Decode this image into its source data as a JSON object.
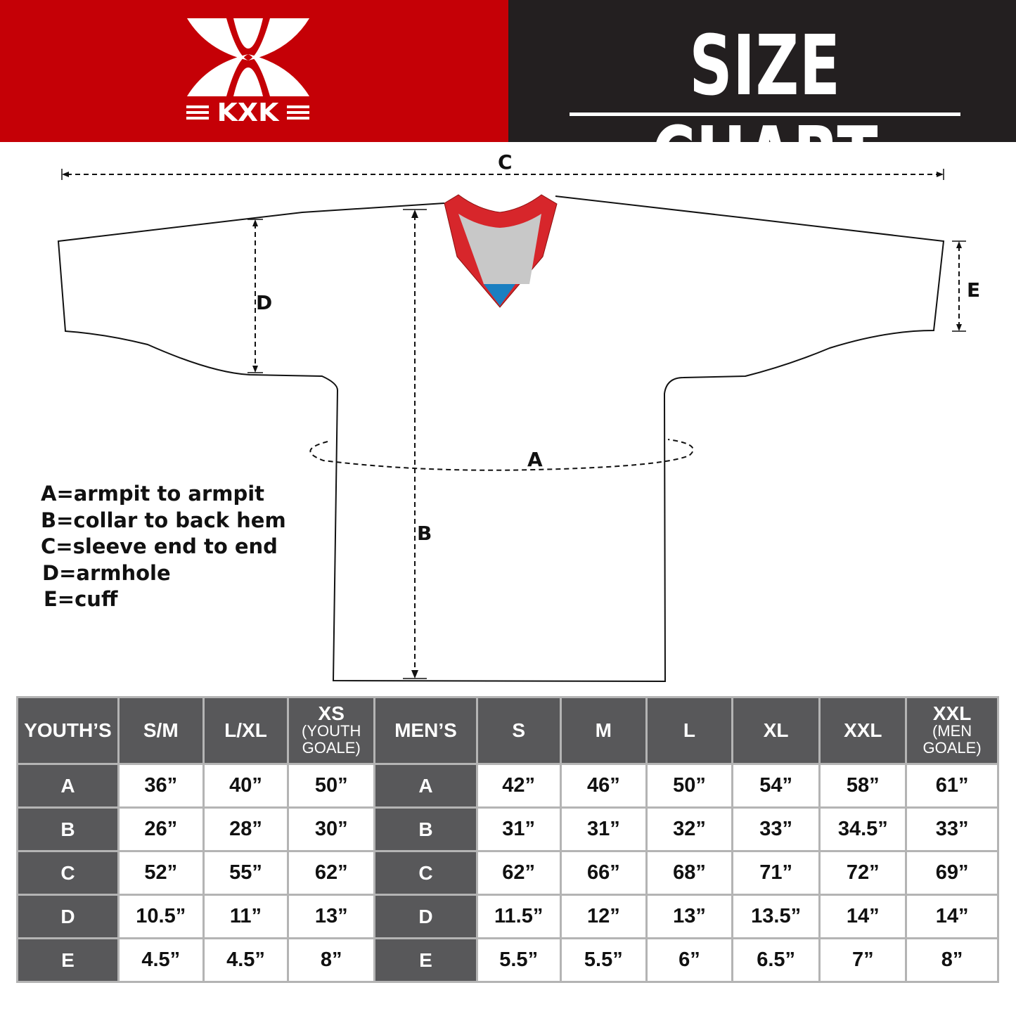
{
  "header": {
    "brand_name": "KXK",
    "title": "SIZE CHART",
    "colors": {
      "brand_red": "#c50006",
      "dark": "#231f20",
      "table_header": "#58585a"
    }
  },
  "diagram": {
    "labels": {
      "A": "A",
      "B": "B",
      "C": "C",
      "D": "D",
      "E": "E"
    },
    "collar_colors": {
      "trim": "#d7262b",
      "inner": "#c8c8c8",
      "tag": "#1a7fc1"
    }
  },
  "legend": [
    "A=armpit to armpit",
    "B=collar to back hem",
    "C=sleeve end to end",
    "D=armhole",
    "E=cuff"
  ],
  "table": {
    "youth": {
      "header": "YOUTH’S",
      "sizes": [
        {
          "label": "S/M",
          "sub": ""
        },
        {
          "label": "L/XL",
          "sub": ""
        },
        {
          "label": "XS",
          "sub": "(YOUTH GOALE)"
        }
      ]
    },
    "men": {
      "header": "MEN’S",
      "sizes": [
        {
          "label": "S",
          "sub": ""
        },
        {
          "label": "M",
          "sub": ""
        },
        {
          "label": "L",
          "sub": ""
        },
        {
          "label": "XL",
          "sub": ""
        },
        {
          "label": "XXL",
          "sub": ""
        },
        {
          "label": "XXL",
          "sub": "(MEN GOALE)"
        }
      ]
    },
    "rows": [
      {
        "label": "A",
        "youth": [
          "36”",
          "40”",
          "50”"
        ],
        "men": [
          "42”",
          "46”",
          "50”",
          "54”",
          "58”",
          "61”"
        ]
      },
      {
        "label": "B",
        "youth": [
          "26”",
          "28”",
          "30”"
        ],
        "men": [
          "31”",
          "31”",
          "32”",
          "33”",
          "34.5”",
          "33”"
        ]
      },
      {
        "label": "C",
        "youth": [
          "52”",
          "55”",
          "62”"
        ],
        "men": [
          "62”",
          "66”",
          "68”",
          "71”",
          "72”",
          "69”"
        ]
      },
      {
        "label": "D",
        "youth": [
          "10.5”",
          "11”",
          "13”"
        ],
        "men": [
          "11.5”",
          "12”",
          "13”",
          "13.5”",
          "14”",
          "14”"
        ]
      },
      {
        "label": "E",
        "youth": [
          "4.5”",
          "4.5”",
          "8”"
        ],
        "men": [
          "5.5”",
          "5.5”",
          "6”",
          "6.5”",
          "7”",
          "8”"
        ]
      }
    ]
  }
}
